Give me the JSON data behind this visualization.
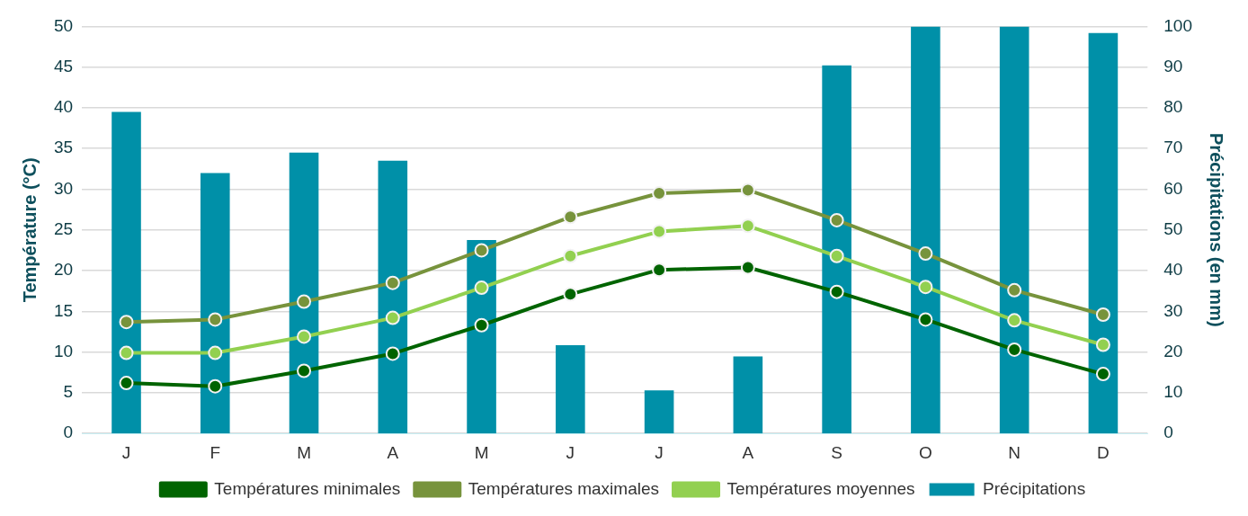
{
  "chart_data": {
    "type": "line",
    "ylabel": "Température (°C)",
    "y2label": "Précipitations (en mm)",
    "categories": [
      "J",
      "F",
      "M",
      "A",
      "M",
      "J",
      "J",
      "A",
      "S",
      "O",
      "N",
      "D"
    ],
    "series": [
      {
        "name": "Précipitations",
        "type": "bar",
        "axis": "y2",
        "color": "#0090a8",
        "values": [
          79,
          64,
          69,
          67,
          47.5,
          21.7,
          10.6,
          18.9,
          90.4,
          100,
          100,
          98.4
        ]
      },
      {
        "name": "Températures minimales",
        "color": "#006400",
        "values": [
          6.2,
          5.8,
          7.7,
          9.8,
          13.3,
          17.1,
          20.1,
          20.4,
          17.4,
          14,
          10.3,
          7.3
        ]
      },
      {
        "name": "Températures maximales",
        "color": "#77933c",
        "values": [
          13.7,
          14,
          16.2,
          18.5,
          22.5,
          26.6,
          29.5,
          29.9,
          26.2,
          22.1,
          17.6,
          14.6
        ]
      },
      {
        "name": "Températures moyennes",
        "color": "#92d050",
        "values": [
          9.9,
          9.9,
          11.9,
          14.2,
          17.9,
          21.8,
          24.8,
          25.5,
          21.8,
          18,
          13.9,
          10.9
        ]
      }
    ],
    "ylim": [
      0,
      50
    ],
    "yticks": [
      0,
      5,
      10,
      15,
      20,
      25,
      30,
      35,
      40,
      45,
      50
    ],
    "y2lim": [
      0,
      100
    ],
    "y2ticks": [
      0,
      10,
      20,
      30,
      40,
      50,
      60,
      70,
      80,
      90,
      100
    ],
    "grid": "y",
    "legend": "bottom",
    "marker": "circle",
    "line_style": "solid"
  }
}
